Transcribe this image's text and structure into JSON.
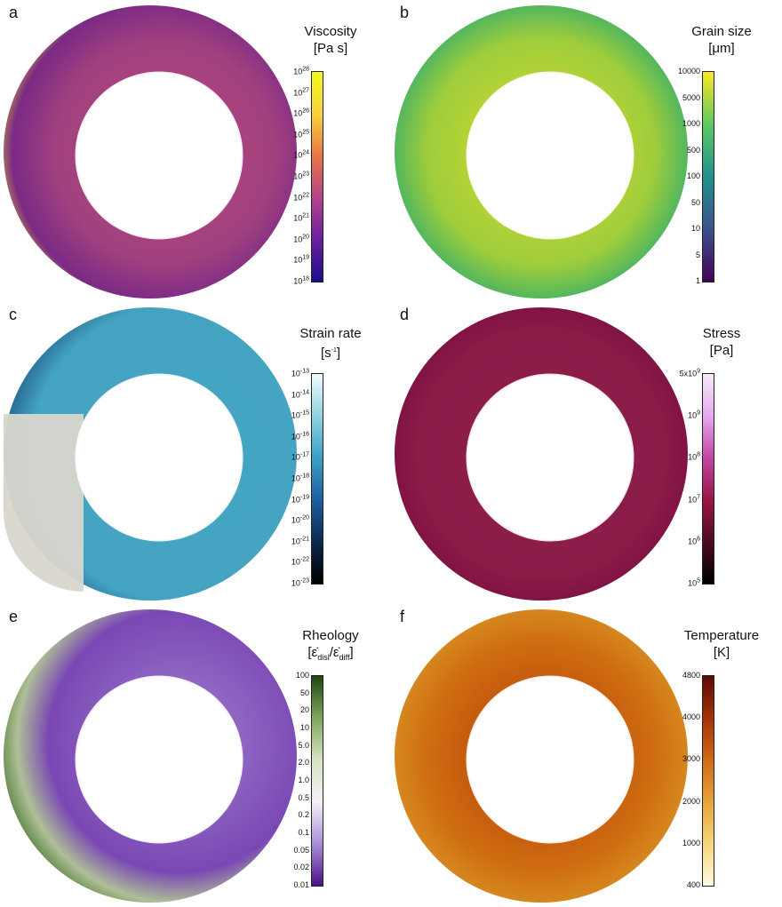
{
  "panels": [
    {
      "label": "a",
      "title_line1": "Viscosity",
      "title_line2": "[Pa s]",
      "ticks": [
        {
          "b": "10",
          "e": "28"
        },
        {
          "b": "10",
          "e": "27"
        },
        {
          "b": "10",
          "e": "26"
        },
        {
          "b": "10",
          "e": "25"
        },
        {
          "b": "10",
          "e": "24"
        },
        {
          "b": "10",
          "e": "23"
        },
        {
          "b": "10",
          "e": "22"
        },
        {
          "b": "10",
          "e": "21"
        },
        {
          "b": "10",
          "e": "20"
        },
        {
          "b": "10",
          "e": "19"
        },
        {
          "b": "10",
          "e": "18"
        }
      ]
    },
    {
      "label": "b",
      "title_line1": "Grain size",
      "title_line2": "[μm]",
      "ticks": [
        {
          "b": "10000",
          "e": ""
        },
        {
          "b": "5000",
          "e": ""
        },
        {
          "b": "1000",
          "e": ""
        },
        {
          "b": "500",
          "e": ""
        },
        {
          "b": "100",
          "e": ""
        },
        {
          "b": "50",
          "e": ""
        },
        {
          "b": "10",
          "e": ""
        },
        {
          "b": "5",
          "e": ""
        },
        {
          "b": "1",
          "e": ""
        }
      ]
    },
    {
      "label": "c",
      "title_line1": "Strain rate",
      "title_line2": "[s",
      "title_sup": "-1",
      "title_end": "]",
      "ticks": [
        {
          "b": "10",
          "e": "-13"
        },
        {
          "b": "10",
          "e": "-14"
        },
        {
          "b": "10",
          "e": "-15"
        },
        {
          "b": "10",
          "e": "-16"
        },
        {
          "b": "10",
          "e": "-17"
        },
        {
          "b": "10",
          "e": "-18"
        },
        {
          "b": "10",
          "e": "-19"
        },
        {
          "b": "10",
          "e": "-20"
        },
        {
          "b": "10",
          "e": "-21"
        },
        {
          "b": "10",
          "e": "-22"
        },
        {
          "b": "10",
          "e": "-23"
        }
      ]
    },
    {
      "label": "d",
      "title_line1": "Stress",
      "title_line2": "[Pa]",
      "ticks": [
        {
          "b": "5x10",
          "e": "9"
        },
        {
          "b": "10",
          "e": "9"
        },
        {
          "b": "10",
          "e": "8"
        },
        {
          "b": "10",
          "e": "7"
        },
        {
          "b": "10",
          "e": "6"
        },
        {
          "b": "10",
          "e": "5"
        }
      ]
    },
    {
      "label": "e",
      "title_line1": "Rheology",
      "title_line2": "[ε̇",
      "title_sub1": "disl",
      "title_mid": "/ε̇",
      "title_sub2": "diff",
      "title_end": "]",
      "ticks": [
        {
          "b": "100",
          "e": ""
        },
        {
          "b": "50",
          "e": ""
        },
        {
          "b": "20",
          "e": ""
        },
        {
          "b": "10",
          "e": ""
        },
        {
          "b": "5.0",
          "e": ""
        },
        {
          "b": "2.0",
          "e": ""
        },
        {
          "b": "1.0",
          "e": ""
        },
        {
          "b": "0.5",
          "e": ""
        },
        {
          "b": "0.2",
          "e": ""
        },
        {
          "b": "0.1",
          "e": ""
        },
        {
          "b": "0.05",
          "e": ""
        },
        {
          "b": "0.02",
          "e": ""
        },
        {
          "b": "0.01",
          "e": ""
        }
      ]
    },
    {
      "label": "f",
      "title_line1": "Temperature",
      "title_line2": "[K]",
      "ticks": [
        {
          "b": "4800",
          "e": ""
        },
        {
          "b": "4000",
          "e": ""
        },
        {
          "b": "3000",
          "e": ""
        },
        {
          "b": "2000",
          "e": ""
        },
        {
          "b": "1000",
          "e": ""
        },
        {
          "b": "400",
          "e": ""
        }
      ]
    }
  ]
}
